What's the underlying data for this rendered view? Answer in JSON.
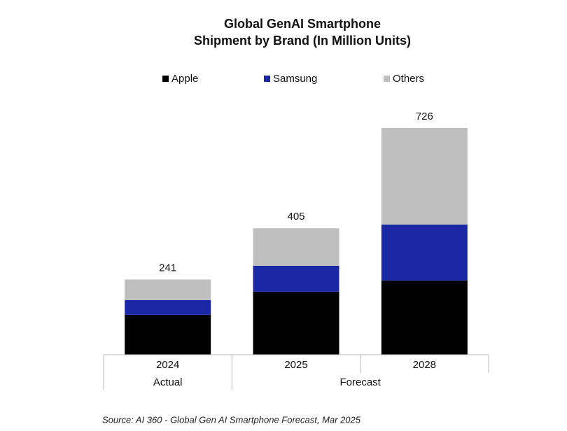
{
  "chart_data": {
    "type": "stacked-bar",
    "title": [
      "Global GenAI Smartphone",
      "Shipment by Brand (In Million Units)"
    ],
    "categories": [
      "2024",
      "2025",
      "2028"
    ],
    "groups": [
      "Actual",
      "Forecast"
    ],
    "series": [
      {
        "name": "Apple",
        "color": "#000000",
        "values": [
          128,
          202,
          238
        ]
      },
      {
        "name": "Samsung",
        "color": "#1a28a6",
        "values": [
          47,
          83,
          179
        ]
      },
      {
        "name": "Others",
        "color": "#bfbfbf",
        "values": [
          66,
          120,
          309
        ]
      }
    ],
    "totals": [
      241,
      405,
      726
    ],
    "source": "Source: AI 360 - Global Gen AI Smartphone Forecast, Mar 2025"
  }
}
